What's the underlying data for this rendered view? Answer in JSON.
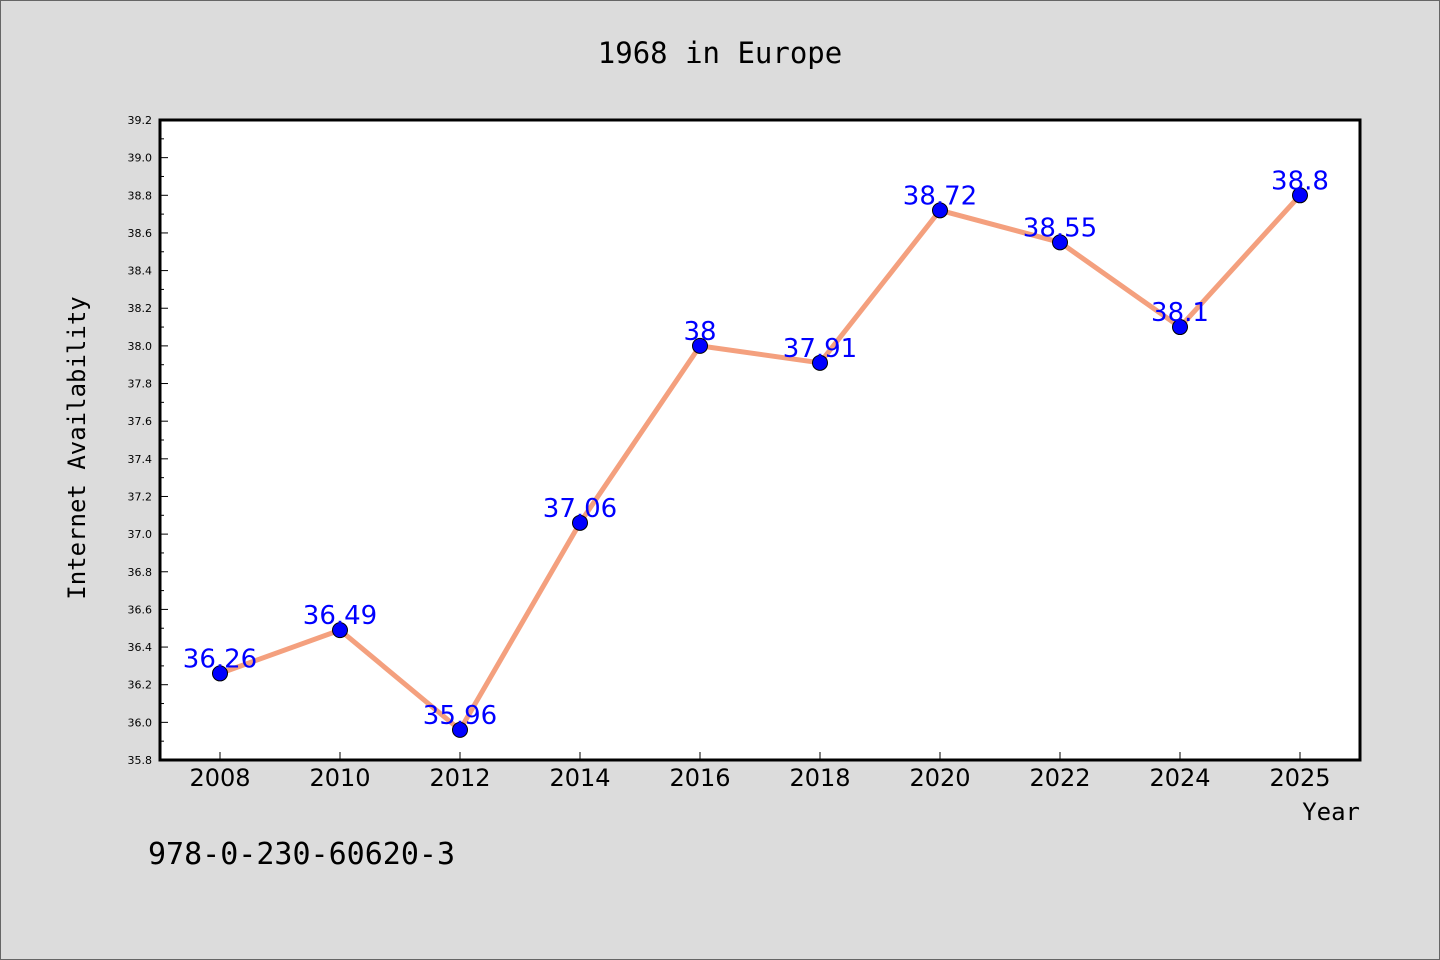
{
  "chart_data": {
    "type": "line",
    "title": "1968 in Europe",
    "xlabel": "Year",
    "ylabel": "Internet Availability",
    "categories": [
      "2008",
      "2010",
      "2012",
      "2014",
      "2016",
      "2018",
      "2020",
      "2022",
      "2024",
      "2025"
    ],
    "values": [
      36.26,
      36.49,
      35.96,
      37.06,
      38,
      37.91,
      38.72,
      38.55,
      38.1,
      38.8
    ],
    "data_labels": [
      "36.26",
      "36.49",
      "35.96",
      "37.06",
      "38",
      "37.91",
      "38.72",
      "38.55",
      "38.1",
      "38.8"
    ],
    "ylim": [
      35.8,
      39.2
    ],
    "yticks": [
      "35.8",
      "36.0",
      "36.2",
      "36.4",
      "36.6",
      "36.8",
      "37.0",
      "37.2",
      "37.4",
      "37.6",
      "37.8",
      "38.0",
      "38.2",
      "38.4",
      "38.6",
      "38.8",
      "39.0",
      "39.2"
    ],
    "grid": false,
    "line_color": "#f4a07e",
    "marker_color": "#0000ff",
    "label_color": "#0000ff"
  },
  "footer_code": "978-0-230-60620-3"
}
